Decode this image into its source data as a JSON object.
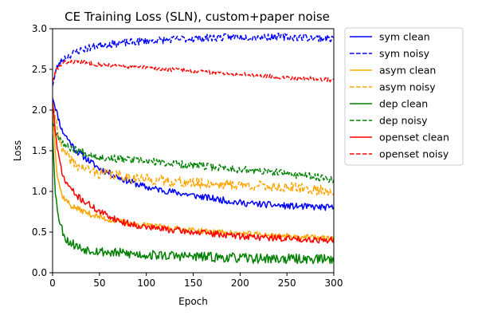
{
  "chart_data": {
    "type": "line",
    "title": "CE Training Loss (SLN), custom+paper noise",
    "xlabel": "Epoch",
    "ylabel": "Loss",
    "xlim": [
      0,
      300
    ],
    "ylim": [
      0,
      3.0
    ],
    "x_ticks": [
      "0",
      "50",
      "100",
      "150",
      "200",
      "250",
      "300"
    ],
    "y_ticks": [
      "0.0",
      "0.5",
      "1.0",
      "1.5",
      "2.0",
      "2.5",
      "3.0"
    ],
    "grid": false,
    "legend_position": "outside-right",
    "series": [
      {
        "name": "sym clean",
        "color": "#0000ff",
        "style": "solid",
        "keypoints": [
          [
            0,
            2.15
          ],
          [
            10,
            1.75
          ],
          [
            25,
            1.5
          ],
          [
            50,
            1.28
          ],
          [
            75,
            1.15
          ],
          [
            100,
            1.05
          ],
          [
            150,
            0.95
          ],
          [
            200,
            0.86
          ],
          [
            250,
            0.82
          ],
          [
            300,
            0.8
          ]
        ],
        "noise": 0.04,
        "seed": 11
      },
      {
        "name": "sym noisy",
        "color": "#0000ff",
        "style": "dashed",
        "keypoints": [
          [
            0,
            2.3
          ],
          [
            4,
            2.5
          ],
          [
            10,
            2.62
          ],
          [
            25,
            2.72
          ],
          [
            50,
            2.8
          ],
          [
            100,
            2.85
          ],
          [
            150,
            2.88
          ],
          [
            200,
            2.9
          ],
          [
            250,
            2.9
          ],
          [
            300,
            2.88
          ]
        ],
        "noise": 0.045,
        "seed": 23
      },
      {
        "name": "asym clean",
        "color": "#ffa500",
        "style": "solid",
        "keypoints": [
          [
            0,
            1.95
          ],
          [
            5,
            1.2
          ],
          [
            10,
            0.95
          ],
          [
            20,
            0.82
          ],
          [
            40,
            0.72
          ],
          [
            60,
            0.65
          ],
          [
            100,
            0.58
          ],
          [
            150,
            0.52
          ],
          [
            200,
            0.48
          ],
          [
            250,
            0.45
          ],
          [
            300,
            0.42
          ]
        ],
        "noise": 0.035,
        "seed": 37
      },
      {
        "name": "asym noisy",
        "color": "#ffa500",
        "style": "dashed",
        "keypoints": [
          [
            0,
            2.1
          ],
          [
            10,
            1.5
          ],
          [
            25,
            1.32
          ],
          [
            50,
            1.22
          ],
          [
            100,
            1.15
          ],
          [
            150,
            1.1
          ],
          [
            200,
            1.08
          ],
          [
            250,
            1.05
          ],
          [
            300,
            1.0
          ]
        ],
        "noise": 0.065,
        "seed": 41
      },
      {
        "name": "dep clean",
        "color": "#008000",
        "style": "solid",
        "keypoints": [
          [
            0,
            1.7
          ],
          [
            3,
            0.95
          ],
          [
            8,
            0.6
          ],
          [
            15,
            0.4
          ],
          [
            30,
            0.3
          ],
          [
            60,
            0.25
          ],
          [
            100,
            0.22
          ],
          [
            150,
            0.2
          ],
          [
            200,
            0.18
          ],
          [
            250,
            0.17
          ],
          [
            300,
            0.17
          ]
        ],
        "noise": 0.06,
        "seed": 53
      },
      {
        "name": "dep noisy",
        "color": "#008000",
        "style": "dashed",
        "keypoints": [
          [
            0,
            1.85
          ],
          [
            5,
            1.7
          ],
          [
            15,
            1.55
          ],
          [
            50,
            1.42
          ],
          [
            100,
            1.37
          ],
          [
            150,
            1.32
          ],
          [
            200,
            1.27
          ],
          [
            250,
            1.22
          ],
          [
            300,
            1.15
          ]
        ],
        "noise": 0.045,
        "seed": 67
      },
      {
        "name": "openset clean",
        "color": "#ff0000",
        "style": "solid",
        "keypoints": [
          [
            0,
            2.1
          ],
          [
            5,
            1.5
          ],
          [
            12,
            1.15
          ],
          [
            25,
            0.95
          ],
          [
            50,
            0.75
          ],
          [
            75,
            0.62
          ],
          [
            100,
            0.56
          ],
          [
            150,
            0.5
          ],
          [
            200,
            0.45
          ],
          [
            250,
            0.42
          ],
          [
            300,
            0.4
          ]
        ],
        "noise": 0.04,
        "seed": 71
      },
      {
        "name": "openset noisy",
        "color": "#ff0000",
        "style": "dashed",
        "keypoints": [
          [
            0,
            2.35
          ],
          [
            4,
            2.5
          ],
          [
            12,
            2.58
          ],
          [
            25,
            2.6
          ],
          [
            50,
            2.56
          ],
          [
            100,
            2.52
          ],
          [
            150,
            2.48
          ],
          [
            200,
            2.44
          ],
          [
            250,
            2.4
          ],
          [
            300,
            2.37
          ]
        ],
        "noise": 0.025,
        "seed": 83
      }
    ]
  }
}
